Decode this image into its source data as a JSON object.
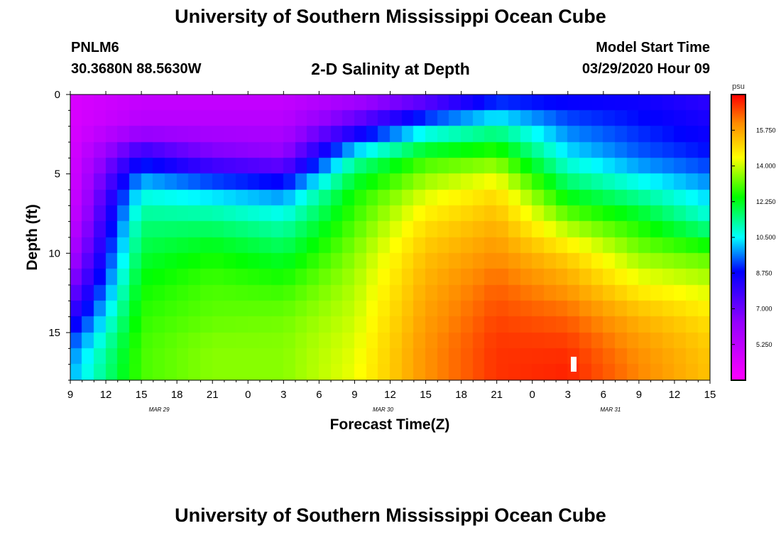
{
  "header": {
    "title": "University of Southern Mississippi Ocean Cube",
    "station": "PNLM6",
    "coords": "30.3680N 88.5630W",
    "plot_title": "2-D Salinity at Depth",
    "model_start_label": "Model Start Time",
    "model_start_value": "03/29/2020 Hour 09"
  },
  "footer": {
    "title": "University of Southern Mississippi Ocean Cube"
  },
  "chart_data": {
    "type": "heatmap",
    "title": "2-D Salinity at Depth",
    "xlabel": "Forecast Time(Z)",
    "ylabel": "Depth (ft)",
    "x_ticks": [
      "9",
      "12",
      "15",
      "18",
      "21",
      "0",
      "3",
      "6",
      "9",
      "12",
      "15",
      "18",
      "21",
      "0",
      "3",
      "6",
      "9",
      "12",
      "15"
    ],
    "date_labels": [
      {
        "label": "MAR 29",
        "at_tick": 2.5
      },
      {
        "label": "MAR 30",
        "at_tick": 8.8
      },
      {
        "label": "MAR 31",
        "at_tick": 15.2
      }
    ],
    "y_ticks": [
      0,
      5,
      10,
      15
    ],
    "ylim": [
      0,
      18
    ],
    "colorbar": {
      "unit": "psu",
      "ticks": [
        "15.750",
        "14.000",
        "12.250",
        "10.500",
        "8.750",
        "7.000",
        "5.250"
      ],
      "vmin": 3.5,
      "vmax": 17.5
    },
    "x_hours": [
      0,
      6,
      12,
      18,
      24,
      30,
      36,
      42,
      48,
      54
    ],
    "salinity_profiles": [
      {
        "time": "03/29 09Z",
        "depth": [
          0,
          2,
          4,
          6,
          8,
          10,
          12,
          14,
          16,
          18
        ],
        "psu": [
          4.5,
          4.5,
          4.5,
          4.5,
          4.8,
          5.5,
          6.5,
          8.0,
          9.5,
          10.0
        ]
      },
      {
        "time": "03/29 15Z",
        "depth": [
          0,
          2,
          4,
          6,
          8,
          10,
          12,
          14,
          16,
          18
        ],
        "psu": [
          5.0,
          5.5,
          8.5,
          10.5,
          11.5,
          12.0,
          12.5,
          12.8,
          13.0,
          13.0
        ]
      },
      {
        "time": "03/29 21Z",
        "depth": [
          0,
          2,
          4,
          6,
          8,
          10,
          12,
          14,
          16,
          18
        ],
        "psu": [
          5.0,
          5.5,
          7.0,
          10.0,
          11.5,
          12.5,
          13.0,
          13.2,
          13.5,
          13.5
        ]
      },
      {
        "time": "03/30 03Z",
        "depth": [
          0,
          2,
          4,
          6,
          8,
          10,
          12,
          14,
          16,
          18
        ],
        "psu": [
          5.0,
          5.5,
          6.5,
          9.5,
          11.0,
          12.0,
          12.8,
          13.3,
          13.5,
          13.5
        ]
      },
      {
        "time": "03/30 09Z",
        "depth": [
          0,
          2,
          4,
          6,
          8,
          10,
          12,
          14,
          16,
          18
        ],
        "psu": [
          5.5,
          7.5,
          11.0,
          12.5,
          13.0,
          13.5,
          13.8,
          14.0,
          14.2,
          14.3
        ]
      },
      {
        "time": "03/30 15Z",
        "depth": [
          0,
          2,
          4,
          6,
          8,
          10,
          12,
          14,
          16,
          18
        ],
        "psu": [
          6.5,
          10.0,
          12.8,
          14.0,
          14.8,
          15.3,
          15.6,
          15.8,
          16.0,
          16.0
        ]
      },
      {
        "time": "03/30 21Z",
        "depth": [
          0,
          2,
          4,
          6,
          8,
          10,
          12,
          14,
          16,
          18
        ],
        "psu": [
          8.5,
          11.0,
          13.2,
          14.8,
          15.5,
          16.0,
          16.5,
          16.8,
          17.0,
          17.0
        ]
      },
      {
        "time": "03/31 03Z",
        "depth": [
          0,
          2,
          4,
          6,
          8,
          10,
          12,
          14,
          16,
          18
        ],
        "psu": [
          8.5,
          9.5,
          10.5,
          12.0,
          13.5,
          15.0,
          15.8,
          16.5,
          17.0,
          17.2
        ]
      },
      {
        "time": "03/31 09Z",
        "depth": [
          0,
          2,
          4,
          6,
          8,
          10,
          12,
          14,
          16,
          18
        ],
        "psu": [
          8.5,
          9.0,
          9.5,
          11.0,
          12.5,
          13.5,
          14.5,
          15.5,
          16.0,
          16.2
        ]
      },
      {
        "time": "03/31 15Z",
        "depth": [
          0,
          2,
          4,
          6,
          8,
          10,
          12,
          14,
          16,
          18
        ],
        "psu": [
          8.0,
          8.5,
          9.0,
          10.0,
          11.0,
          13.0,
          14.0,
          14.8,
          15.2,
          15.3
        ]
      }
    ]
  }
}
